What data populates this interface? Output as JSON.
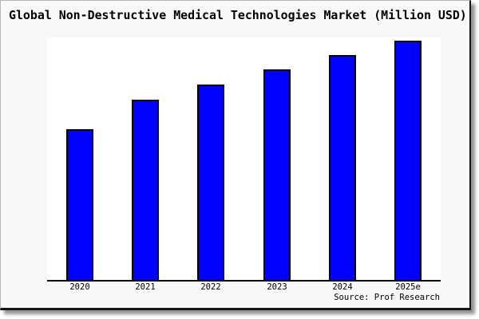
{
  "chart": {
    "title": "Global Non-Destructive Medical Technologies Market (Million USD)",
    "source": "Source: Prof Research"
  },
  "chart_data": {
    "type": "bar",
    "title": "Global Non-Destructive Medical Technologies Market (Million USD)",
    "categories": [
      "2020",
      "2021",
      "2022",
      "2023",
      "2024",
      "2025e"
    ],
    "values": [
      63,
      75.3,
      81.7,
      88,
      94,
      100
    ],
    "value_note": "y-axis has no ticks or labels in the image; values are relative heights estimated from pixels, indexed so 2025e = 100",
    "xlabel": "",
    "ylabel": "",
    "ylim": [
      0,
      101
    ],
    "grid": false,
    "legend": false,
    "annotation": "Source: Prof Research",
    "bar_color": "#0000ff",
    "bar_border_color": "#000000"
  },
  "colors": {
    "card_background": "#f8f8f8",
    "plot_background": "#ffffff",
    "bar_fill": "#0000ff",
    "bar_outline": "#000000",
    "axis": "#000000",
    "text": "#000000"
  }
}
